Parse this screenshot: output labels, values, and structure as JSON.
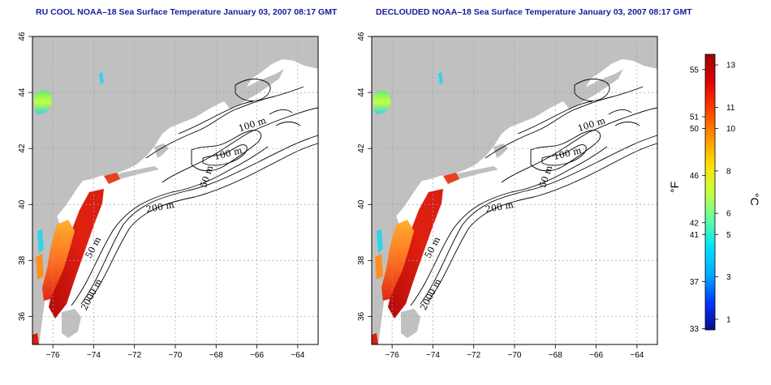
{
  "maps": [
    {
      "id": "left",
      "title": "RU COOL NOAA–18 Sea Surface Temperature January 03, 2007 08:17 GMT",
      "contour_labels": [
        "100 m",
        "100 m",
        "50 m",
        "200 m",
        "50 m",
        "2000 m"
      ]
    },
    {
      "id": "right",
      "title": "DECLOUDED NOAA–18 Sea Surface Temperature January 03, 2007 08:17 GMT",
      "contour_labels": [
        "100 m",
        "100 m",
        "50 m",
        "200 m",
        "50 m",
        "2000 m"
      ]
    }
  ],
  "axes": {
    "lon_ticks": [
      "−76",
      "−74",
      "−72",
      "−70",
      "−68",
      "−66",
      "−64"
    ],
    "lat_ticks": [
      "36",
      "38",
      "40",
      "42",
      "44",
      "46"
    ],
    "lon_range": [
      -77,
      -63
    ],
    "lat_range": [
      35,
      46
    ]
  },
  "colorbar": {
    "fahrenheit_ticks": [
      "55",
      "51",
      "50",
      "46",
      "42",
      "41",
      "37",
      "33"
    ],
    "celsius_ticks": [
      "13",
      "11",
      "10",
      "8",
      "6",
      "5",
      "3",
      "1"
    ],
    "fahrenheit_label": "°F",
    "celsius_label": "°C",
    "range_c": [
      0.5,
      13.5
    ],
    "gradient": [
      "#0a0a8c",
      "#0038ff",
      "#00aaff",
      "#00e0ff",
      "#5fffa0",
      "#c8ff3c",
      "#ffe000",
      "#ff9000",
      "#ff4000",
      "#e00000",
      "#9c0000"
    ]
  },
  "colors": {
    "land": "#c0c0c0",
    "ocean": "#ffffff",
    "title": "#1a1a9c",
    "sst_warm": "#d81e10",
    "sst_mid": "#ff8c1e",
    "sst_cool": "#34d2e8"
  }
}
